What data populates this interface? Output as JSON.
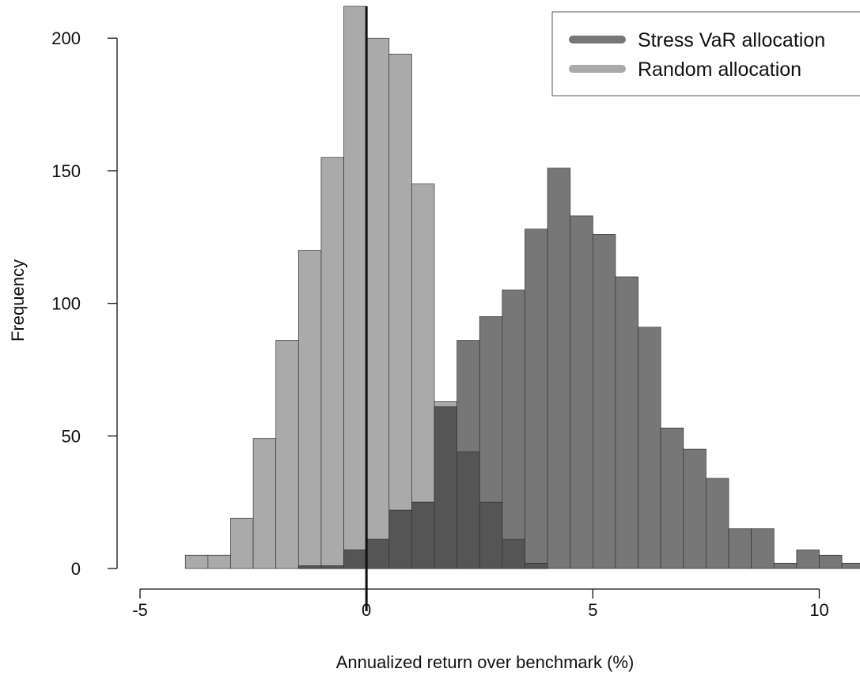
{
  "chart_data": {
    "type": "bar",
    "subtype": "overlaid-histogram",
    "title": "",
    "xlabel": "Annualized return over benchmark (%)",
    "ylabel": "Frequency",
    "xlim": [
      -5,
      10.9
    ],
    "ylim": [
      0,
      212
    ],
    "xticks": [
      -5,
      0,
      5,
      10
    ],
    "yticks": [
      0,
      50,
      100,
      150,
      200
    ],
    "bin_width": 0.5,
    "reference_line_x": 0,
    "grid": false,
    "legend_position": "top-right",
    "colors": {
      "stress": "#777777",
      "random": "#aaaaaa",
      "overlap": "#555555",
      "bar_edge": "#333333",
      "reference_line": "#111111"
    },
    "series": [
      {
        "name": "Stress VaR allocation",
        "bin_starts": [
          -1.5,
          -1.0,
          -0.5,
          0.0,
          0.5,
          1.0,
          1.5,
          2.0,
          2.5,
          3.0,
          3.5,
          4.0,
          4.5,
          5.0,
          5.5,
          6.0,
          6.5,
          7.0,
          7.5,
          8.0,
          8.5,
          9.0,
          9.5,
          10.0,
          10.5
        ],
        "values": [
          1,
          1,
          7,
          11,
          22,
          25,
          61,
          86,
          95,
          105,
          128,
          151,
          133,
          126,
          110,
          91,
          53,
          45,
          34,
          15,
          15,
          2,
          7,
          5,
          2
        ]
      },
      {
        "name": "Random allocation",
        "bin_starts": [
          -4.0,
          -3.5,
          -3.0,
          -2.5,
          -2.0,
          -1.5,
          -1.0,
          -0.5,
          0.0,
          0.5,
          1.0,
          1.5,
          2.0,
          2.5,
          3.0,
          3.5
        ],
        "values": [
          5,
          5,
          19,
          49,
          86,
          120,
          155,
          212,
          200,
          194,
          145,
          63,
          44,
          25,
          11,
          2
        ]
      }
    ]
  }
}
